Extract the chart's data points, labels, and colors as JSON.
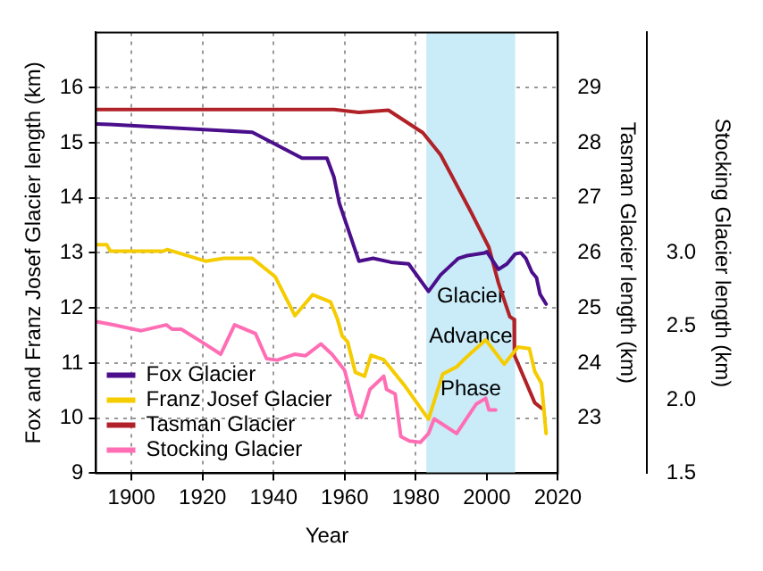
{
  "chart_data": {
    "type": "line",
    "xlabel": "Year",
    "ylabel": "Fox and Franz Josef Glacier length (km)",
    "y2label": "Tasman Glacier length (km)",
    "y3label": "Stocking Glacier length (km)",
    "xlim": [
      1890,
      2020
    ],
    "xticks": [
      1900,
      1920,
      1940,
      1960,
      1980,
      2000,
      2020
    ],
    "ylim": [
      9,
      17
    ],
    "yticks": [
      9,
      10,
      11,
      12,
      13,
      14,
      15,
      16
    ],
    "y2lim": [
      22,
      30
    ],
    "y2ticks": [
      23,
      24,
      25,
      26,
      27,
      28,
      29
    ],
    "y3lim": [
      1.5,
      4.5
    ],
    "y3ticks": [
      1.5,
      {
        "value": 2,
        "label": "2.0"
      },
      2.5,
      {
        "value": 3,
        "label": "3.0"
      }
    ],
    "grid": true,
    "legend": "bottom left",
    "marker": "none",
    "line_style": "solid",
    "bands": [
      {
        "axis": "x",
        "from": 1983,
        "to": 2008,
        "label": "Glacier Advance Phase",
        "color": "#c9ecf8"
      }
    ],
    "series": [
      {
        "name": "Fox Glacier",
        "color": "#4b0f8c",
        "x": [
          1890.4,
          1894,
          1934,
          1948,
          1955,
          1957,
          1958.5,
          1964,
          1968,
          1973,
          1978,
          1983.6,
          1987,
          1992,
          1994.5,
          1999.4,
          2000,
          2003.3,
          2005.7,
          2008,
          2009.6,
          2011,
          2012.7,
          2014,
          2015,
          2016.7
        ],
        "values": [
          15.34,
          15.33,
          15.19,
          14.72,
          14.72,
          14.37,
          13.9,
          12.85,
          12.9,
          12.83,
          12.8,
          12.3,
          12.6,
          12.9,
          12.95,
          13.0,
          13.02,
          12.7,
          12.8,
          12.98,
          13.0,
          12.9,
          12.65,
          12.55,
          12.25,
          12.07
        ]
      },
      {
        "name": "Franz Josef Glacier",
        "color": "#f5cc00",
        "x": [
          1890.4,
          1893,
          1894,
          1909,
          1910,
          1920.8,
          1926,
          1934,
          1940.4,
          1946,
          1951,
          1956,
          1958,
          1959.3,
          1960.8,
          1963,
          1965.6,
          1967.4,
          1971,
          1977,
          1983.6,
          1987.6,
          1991.5,
          1995,
          1999.7,
          2004.9,
          2008.8,
          2012,
          2013.5,
          2015.4,
          2016.7
        ],
        "values": [
          13.15,
          13.15,
          13.03,
          13.03,
          13.06,
          12.85,
          12.9,
          12.9,
          12.57,
          11.86,
          12.24,
          12.11,
          11.79,
          11.49,
          11.39,
          10.83,
          10.76,
          11.14,
          11.06,
          10.58,
          9.98,
          10.8,
          10.93,
          11.15,
          11.42,
          10.98,
          11.29,
          11.26,
          10.85,
          10.63,
          9.72
        ]
      },
      {
        "name": "Tasman Glacier",
        "color": "#b02228",
        "axis": "y2",
        "x": [
          1890.4,
          1957,
          1964,
          1972.3,
          1982,
          1987,
          1995.4,
          2000.6,
          2003.3,
          2006.5,
          2007.7,
          2007.8,
          2013.5,
          2015.4
        ],
        "values": [
          28.6,
          28.6,
          28.55,
          28.59,
          28.18,
          27.78,
          26.76,
          26.1,
          25.45,
          24.84,
          24.79,
          24.14,
          23.28,
          23.18
        ]
      },
      {
        "name": "Stocking Glacier",
        "color": "#ff6eb4",
        "axis": "y3",
        "x": [
          1890.4,
          1894.8,
          1902.7,
          1909.8,
          1911.4,
          1914,
          1920,
          1925.1,
          1929,
          1934.9,
          1938,
          1941,
          1945.9,
          1949,
          1953.3,
          1956.4,
          1960,
          1963.2,
          1964.7,
          1967.1,
          1971,
          1971.8,
          1974.2,
          1975.8,
          1978.2,
          1981.3,
          1983.6,
          1985.2,
          1991.5,
          1997,
          1999.7,
          2000.6,
          2002.5
        ],
        "values": [
          2.53,
          2.51,
          2.47,
          2.51,
          2.48,
          2.48,
          2.39,
          2.31,
          2.51,
          2.45,
          2.28,
          2.27,
          2.31,
          2.3,
          2.38,
          2.31,
          2.2,
          1.9,
          1.88,
          2.07,
          2.16,
          2.07,
          2.04,
          1.75,
          1.72,
          1.71,
          1.77,
          1.87,
          1.77,
          1.97,
          2.01,
          1.93,
          1.93
        ]
      }
    ]
  }
}
